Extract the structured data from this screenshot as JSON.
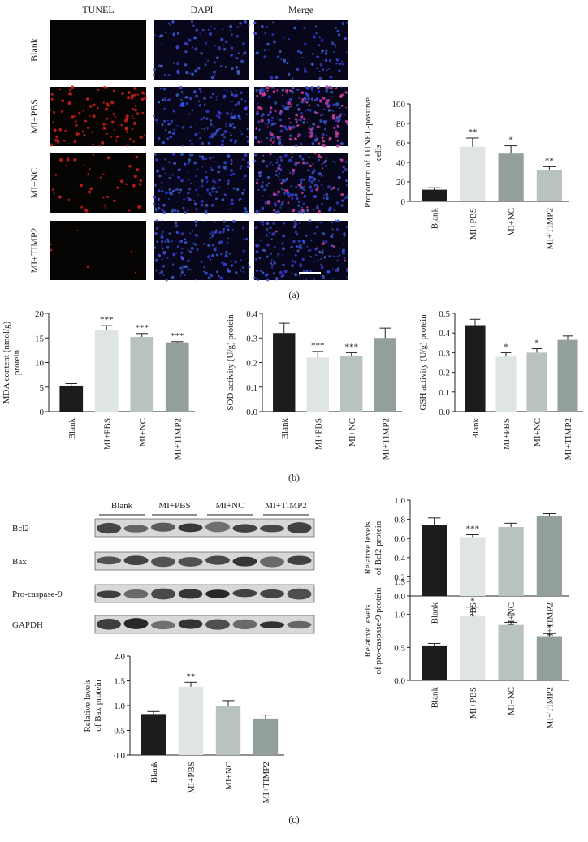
{
  "microscopy": {
    "columns": [
      "TUNEL",
      "DAPI",
      "Merge"
    ],
    "rows": [
      "Blank",
      "MI+PBS",
      "MI+NC",
      "MI+TIMP2"
    ]
  },
  "blot": {
    "groups": [
      "Blank",
      "MI+PBS",
      "MI+NC",
      "MI+TIMP2"
    ],
    "proteins": [
      "Bcl2",
      "Bax",
      "Pro-caspase-9",
      "GAPDH"
    ]
  },
  "panel_labels": [
    "(a)",
    "(b)",
    "(c)"
  ],
  "chart_data": [
    {
      "type": "bar",
      "ylabel": [
        "Proportion of TUNEL-positive",
        "cells"
      ],
      "categories": [
        "Blank",
        "MI+PBS",
        "MI+NC",
        "MI+TIMP2"
      ],
      "values": [
        12,
        56,
        49,
        32.5
      ],
      "errors": [
        2,
        9,
        8,
        3
      ],
      "annotations": [
        null,
        "**",
        "*",
        "**"
      ],
      "colors": [
        "#1c1c1c",
        "#dfe5e2",
        "#939f9c",
        "#b8c2c1"
      ],
      "ylim": [
        0,
        100
      ],
      "yticks": [
        0,
        20,
        40,
        60,
        80,
        100
      ]
    },
    {
      "type": "bar",
      "ylabel": [
        "MDA content (nmol/g)",
        "protein"
      ],
      "categories": [
        "Blank",
        "MI+PBS",
        "MI+NC",
        "MI+TIMP2"
      ],
      "values": [
        5.3,
        16.6,
        15.2,
        14.1
      ],
      "errors": [
        0.4,
        0.9,
        0.7,
        0.15
      ],
      "annotations": [
        null,
        "***",
        "***",
        "***"
      ],
      "colors": [
        "#1c1c1c",
        "#dfe5e2",
        "#b8c2c1",
        "#939f9c"
      ],
      "ylim": [
        0,
        20
      ],
      "yticks": [
        0,
        5,
        10,
        15,
        20
      ]
    },
    {
      "type": "bar",
      "ylabel": [
        "SOD activity (U/g) protein"
      ],
      "categories": [
        "Blank",
        "MI+PBS",
        "MI+NC",
        "MI+TIMP2"
      ],
      "values": [
        0.32,
        0.22,
        0.225,
        0.3
      ],
      "errors": [
        0.04,
        0.025,
        0.015,
        0.04
      ],
      "annotations": [
        null,
        "***",
        "***",
        null
      ],
      "colors": [
        "#1c1c1c",
        "#dfe5e2",
        "#b8c2c1",
        "#939f9c"
      ],
      "ylim": [
        0,
        0.4
      ],
      "yticks": [
        {
          "value": 0,
          "label": "0.0"
        },
        0.1,
        0.2,
        0.3,
        0.4
      ]
    },
    {
      "type": "bar",
      "ylabel": [
        "GSH activity (U/g) protein"
      ],
      "categories": [
        "Blank",
        "MI+PBS",
        "MI+NC",
        "MI+TIMP2"
      ],
      "values": [
        0.44,
        0.28,
        0.3,
        0.365
      ],
      "errors": [
        0.03,
        0.02,
        0.02,
        0.02
      ],
      "annotations": [
        null,
        "*",
        "*",
        null
      ],
      "colors": [
        "#1c1c1c",
        "#dfe5e2",
        "#b8c2c1",
        "#939f9c"
      ],
      "ylim": [
        0,
        0.5
      ],
      "yticks": [
        {
          "value": 0,
          "label": "0.0"
        },
        0.1,
        0.2,
        0.3,
        0.4,
        0.5
      ]
    },
    {
      "type": "bar",
      "ylabel": [
        "Relative levels",
        "of Bcl2 protein"
      ],
      "categories": [
        "Blank",
        "MI+PBS",
        "MI+NC",
        "MI+TIMP2"
      ],
      "values": [
        0.745,
        0.615,
        0.72,
        0.835
      ],
      "errors": [
        0.07,
        0.025,
        0.04,
        0.025
      ],
      "annotations": [
        null,
        "***",
        null,
        null
      ],
      "colors": [
        "#1c1c1c",
        "#dfe5e2",
        "#b8c2c1",
        "#939f9c"
      ],
      "ylim": [
        0,
        1
      ],
      "yticks": [
        {
          "value": 0,
          "label": "0.0"
        },
        0.2,
        0.4,
        0.6,
        0.8,
        {
          "value": 1,
          "label": "1.0"
        }
      ]
    },
    {
      "type": "bar",
      "ylabel": [
        "Relative levels",
        "of Bax protein"
      ],
      "categories": [
        "Blank",
        "MI+PBS",
        "MI+NC",
        "MI+TIMP2"
      ],
      "values": [
        0.83,
        1.38,
        1.0,
        0.74
      ],
      "errors": [
        0.05,
        0.09,
        0.1,
        0.07
      ],
      "annotations": [
        null,
        "**",
        null,
        null
      ],
      "colors": [
        "#1c1c1c",
        "#dfe5e2",
        "#b8c2c1",
        "#939f9c"
      ],
      "ylim": [
        0,
        2
      ],
      "yticks": [
        {
          "value": 0,
          "label": "0.0"
        },
        0.5,
        {
          "value": 1,
          "label": "1.0"
        },
        1.5,
        {
          "value": 2,
          "label": "2.0"
        }
      ]
    },
    {
      "type": "bar",
      "ylabel": [
        "Relative levels",
        "of pro-caspase-9 protein"
      ],
      "categories": [
        "Blank",
        "MI+PBS",
        "MI+NC",
        "MI+TIMP2"
      ],
      "values": [
        0.53,
        0.97,
        0.84,
        0.67
      ],
      "errors": [
        0.03,
        0.14,
        0.04,
        0.04
      ],
      "annotations": [
        null,
        "*",
        "**",
        "*"
      ],
      "colors": [
        "#1c1c1c",
        "#dfe5e2",
        "#b8c2c1",
        "#939f9c"
      ],
      "ylim": [
        0,
        1.5
      ],
      "yticks": [
        {
          "value": 0,
          "label": "0.0"
        },
        0.5,
        {
          "value": 1,
          "label": "1.0"
        },
        1.5
      ]
    }
  ]
}
